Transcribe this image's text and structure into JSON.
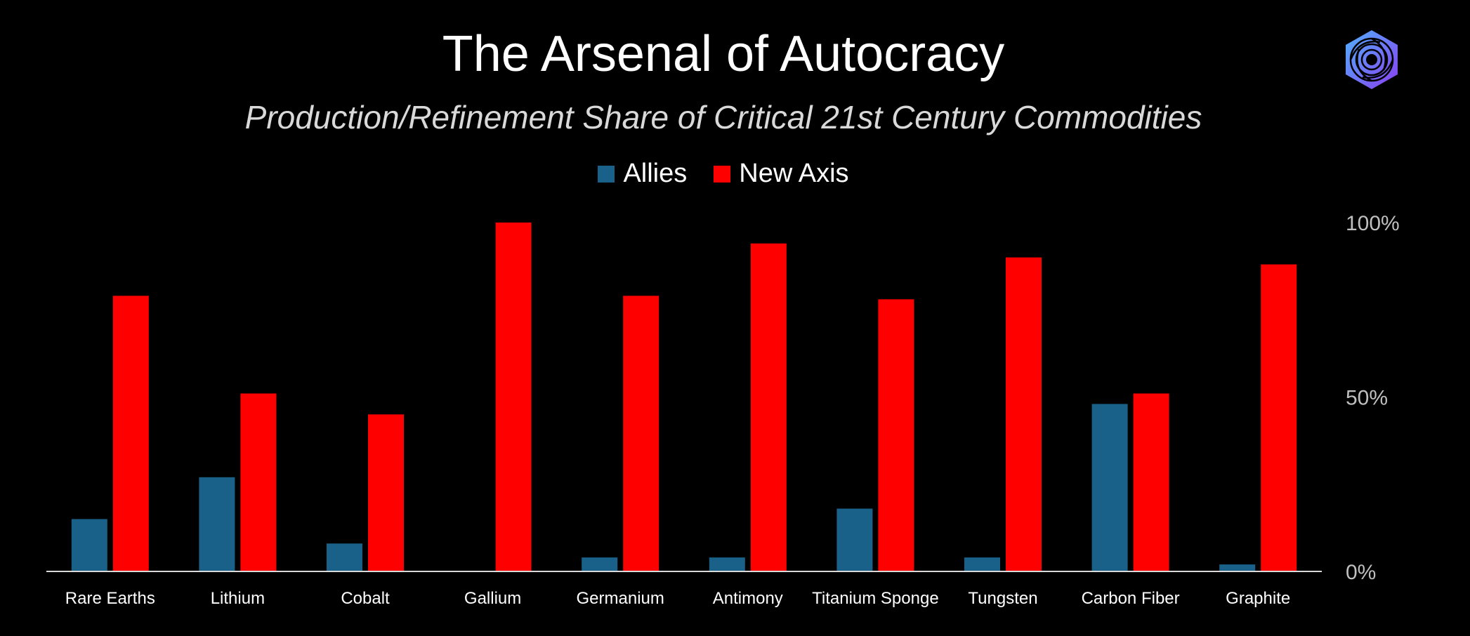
{
  "chart_data": {
    "type": "bar",
    "title": "The Arsenal of Autocracy",
    "subtitle": "Production/Refinement Share of Critical 21st Century Commodities",
    "categories": [
      "Rare Earths",
      "Lithium",
      "Cobalt",
      "Gallium",
      "Germanium",
      "Antimony",
      "Titanium Sponge",
      "Tungsten",
      "Carbon Fiber",
      "Graphite"
    ],
    "series": [
      {
        "name": "Allies",
        "color": "#1a6189",
        "values": [
          15,
          27,
          8,
          0,
          4,
          4,
          18,
          4,
          48,
          2
        ]
      },
      {
        "name": "New Axis",
        "color": "#ff0000",
        "values": [
          79,
          51,
          45,
          100,
          79,
          94,
          78,
          90,
          51,
          88
        ]
      }
    ],
    "ylim": [
      0,
      100
    ],
    "yticks": [
      "0%",
      "50%",
      "100%"
    ],
    "ytick_values": [
      0,
      50,
      100
    ],
    "y_axis_side": "right",
    "grid": false,
    "legend": "top-center"
  },
  "logo": {
    "icon": "hexagon-spiral-logo-icon"
  }
}
